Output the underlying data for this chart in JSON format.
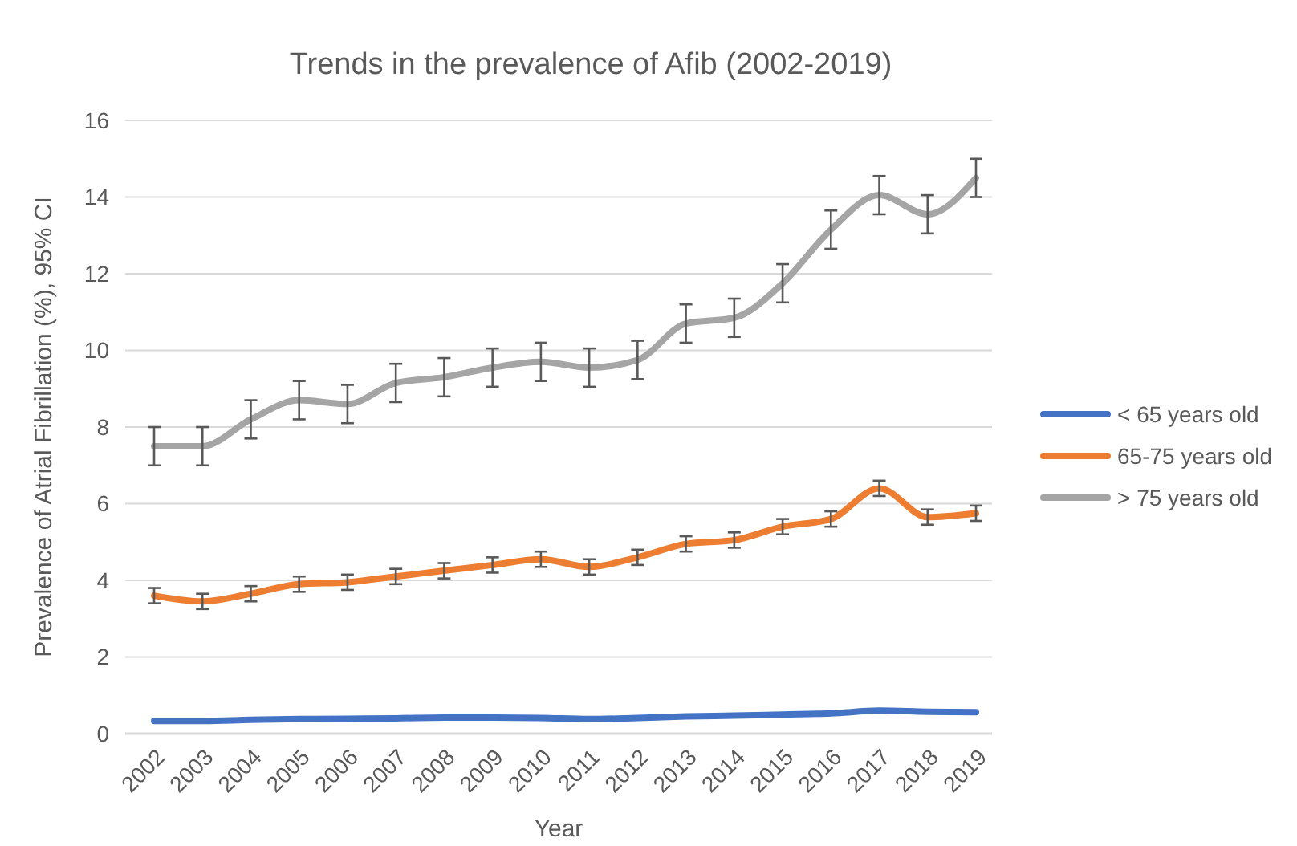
{
  "chart_data": {
    "type": "line",
    "title": "Trends in the prevalence of Afib (2002-2019)",
    "xlabel": "Year",
    "ylabel": "Prevalence of Atrial Fibrillation (%), 95% CI",
    "categories": [
      "2002",
      "2003",
      "2004",
      "2005",
      "2006",
      "2007",
      "2008",
      "2009",
      "2010",
      "2011",
      "2012",
      "2013",
      "2014",
      "2015",
      "2016",
      "2017",
      "2018",
      "2019"
    ],
    "series": [
      {
        "name": "< 65 years old",
        "color": "#4472c4",
        "values": [
          0.33,
          0.33,
          0.36,
          0.38,
          0.39,
          0.4,
          0.42,
          0.42,
          0.41,
          0.38,
          0.41,
          0.45,
          0.47,
          0.5,
          0.53,
          0.6,
          0.57,
          0.56
        ]
      },
      {
        "name": "65-75 years old",
        "color": "#ed7d31",
        "values": [
          3.6,
          3.45,
          3.65,
          3.9,
          3.95,
          4.1,
          4.25,
          4.4,
          4.55,
          4.35,
          4.6,
          4.95,
          5.05,
          5.4,
          5.6,
          6.4,
          5.65,
          5.75
        ],
        "errors": [
          0.2,
          0.2,
          0.2,
          0.2,
          0.2,
          0.2,
          0.2,
          0.2,
          0.2,
          0.2,
          0.2,
          0.2,
          0.2,
          0.2,
          0.2,
          0.2,
          0.2,
          0.2
        ]
      },
      {
        "name": "> 75 years old",
        "color": "#a5a5a5",
        "values": [
          7.5,
          7.5,
          8.2,
          8.7,
          8.6,
          9.15,
          9.3,
          9.55,
          9.7,
          9.55,
          9.75,
          10.7,
          10.85,
          11.75,
          13.15,
          14.05,
          13.55,
          14.5
        ],
        "errors": [
          0.5,
          0.5,
          0.5,
          0.5,
          0.5,
          0.5,
          0.5,
          0.5,
          0.5,
          0.5,
          0.5,
          0.5,
          0.5,
          0.5,
          0.5,
          0.5,
          0.5,
          0.5
        ]
      }
    ],
    "ylim": [
      0,
      16
    ],
    "yticks": [
      0,
      2,
      4,
      6,
      8,
      10,
      12,
      14,
      16
    ],
    "grid": "y",
    "legend": "right",
    "marker": "none",
    "line_style": "solid"
  }
}
